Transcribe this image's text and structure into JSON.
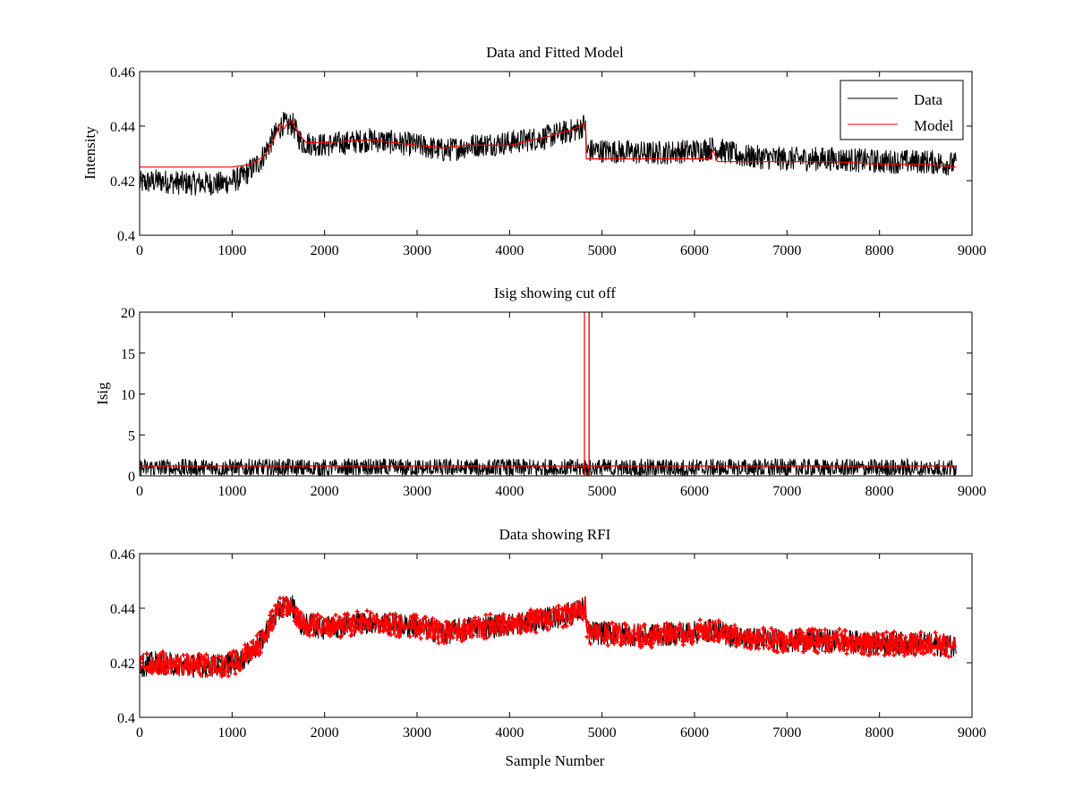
{
  "figure": {
    "xlabel": "Sample Number"
  },
  "colors": {
    "data": "#000000",
    "model": "#ff0000",
    "rfi": "#ff0000",
    "axes": "#000000",
    "background": "#ffffff"
  },
  "chart_data": [
    {
      "type": "line",
      "title": "Data and Fitted Model",
      "xlabel": "",
      "ylabel": "Intensity",
      "xlim": [
        0,
        9000
      ],
      "ylim": [
        0.4,
        0.46
      ],
      "xticks": [
        0,
        1000,
        2000,
        3000,
        4000,
        5000,
        6000,
        7000,
        8000,
        9000
      ],
      "yticks": [
        0.4,
        0.42,
        0.44,
        0.46
      ],
      "ytick_labels": [
        "0.4",
        "0.42",
        "0.44",
        "0.46"
      ],
      "grid": false,
      "legend": {
        "position": "top-right",
        "entries": [
          "Data",
          "Model"
        ]
      },
      "series": [
        {
          "name": "Data",
          "color": "#000000",
          "style": "noisy-line",
          "x_range": [
            0,
            8830
          ],
          "noise_amplitude": 0.0045,
          "trend": {
            "x": [
              0,
              200,
              500,
              900,
              1100,
              1300,
              1450,
              1550,
              1600,
              1650,
              1750,
              2000,
              2500,
              3000,
              3300,
              3600,
              4000,
              4400,
              4750,
              4820,
              4830,
              5000,
              5500,
              6000,
              6200,
              6500,
              7000,
              7500,
              8000,
              8500,
              8830
            ],
            "y": [
              0.419,
              0.42,
              0.419,
              0.419,
              0.421,
              0.427,
              0.436,
              0.441,
              0.44,
              0.441,
              0.434,
              0.433,
              0.435,
              0.433,
              0.431,
              0.433,
              0.434,
              0.436,
              0.439,
              0.441,
              0.431,
              0.431,
              0.43,
              0.431,
              0.432,
              0.429,
              0.428,
              0.428,
              0.427,
              0.427,
              0.426
            ]
          }
        },
        {
          "name": "Model",
          "color": "#ff0000",
          "style": "line",
          "x": [
            0,
            300,
            600,
            1000,
            1200,
            1350,
            1450,
            1520,
            1560,
            1600,
            1650,
            1700,
            1800,
            2000,
            2500,
            3000,
            3300,
            3500,
            4000,
            4400,
            4700,
            4820,
            4830,
            4900,
            5500,
            6000,
            6150,
            6200,
            6250,
            6500,
            7000,
            7500,
            8000,
            8500,
            8830
          ],
          "y": [
            0.425,
            0.425,
            0.425,
            0.425,
            0.426,
            0.429,
            0.435,
            0.441,
            0.439,
            0.441,
            0.442,
            0.438,
            0.434,
            0.434,
            0.435,
            0.433,
            0.432,
            0.433,
            0.433,
            0.436,
            0.439,
            0.441,
            0.428,
            0.428,
            0.428,
            0.428,
            0.428,
            0.431,
            0.427,
            0.427,
            0.427,
            0.427,
            0.426,
            0.426,
            0.425
          ]
        }
      ]
    },
    {
      "type": "line",
      "title": "Isig showing cut off",
      "xlabel": "",
      "ylabel": "Isig",
      "xlim": [
        0,
        9000
      ],
      "ylim": [
        0,
        20
      ],
      "xticks": [
        0,
        1000,
        2000,
        3000,
        4000,
        5000,
        6000,
        7000,
        8000,
        9000
      ],
      "yticks": [
        0,
        5,
        10,
        15,
        20
      ],
      "ytick_labels": [
        "0",
        "5",
        "10",
        "15",
        "20"
      ],
      "grid": false,
      "series": [
        {
          "color": "#000000",
          "style": "noisy-line",
          "x_range": [
            0,
            8830
          ],
          "baseline": 0.9,
          "noise_amplitude": 1.2,
          "spikes": [
            {
              "x": 4810,
              "y": 20
            },
            {
              "x": 4860,
              "y": 20
            }
          ]
        },
        {
          "color": "#ff0000",
          "style": "line",
          "x": [
            0,
            8830
          ],
          "y": [
            1.2,
            1.2
          ]
        },
        {
          "color": "#ff0000",
          "style": "line",
          "x": [
            4810,
            4810
          ],
          "y": [
            0,
            20
          ]
        },
        {
          "color": "#ff0000",
          "style": "line",
          "x": [
            4860,
            4860
          ],
          "y": [
            0,
            20
          ]
        }
      ]
    },
    {
      "type": "line",
      "title": "Data showing RFI",
      "xlabel": "Sample Number",
      "ylabel": "",
      "xlim": [
        0,
        9000
      ],
      "ylim": [
        0.4,
        0.46
      ],
      "xticks": [
        0,
        1000,
        2000,
        3000,
        4000,
        5000,
        6000,
        7000,
        8000,
        9000
      ],
      "yticks": [
        0.4,
        0.42,
        0.44,
        0.46
      ],
      "ytick_labels": [
        "0.4",
        "0.42",
        "0.44",
        "0.46"
      ],
      "grid": false,
      "series": [
        {
          "color": "#000000",
          "style": "noisy-line",
          "x_range": [
            0,
            8830
          ],
          "noise_amplitude": 0.0045,
          "trend": {
            "x": [
              0,
              200,
              500,
              900,
              1100,
              1300,
              1450,
              1550,
              1600,
              1650,
              1750,
              2000,
              2500,
              3000,
              3300,
              3600,
              4000,
              4400,
              4750,
              4820,
              4830,
              5000,
              5500,
              6000,
              6200,
              6500,
              7000,
              7500,
              8000,
              8500,
              8830
            ],
            "y": [
              0.419,
              0.42,
              0.419,
              0.419,
              0.421,
              0.427,
              0.436,
              0.441,
              0.44,
              0.441,
              0.434,
              0.433,
              0.435,
              0.433,
              0.431,
              0.433,
              0.434,
              0.436,
              0.439,
              0.441,
              0.431,
              0.431,
              0.43,
              0.431,
              0.432,
              0.429,
              0.428,
              0.428,
              0.427,
              0.427,
              0.426
            ]
          }
        },
        {
          "color": "#ff0000",
          "style": "markers-plus",
          "x_range": [
            0,
            8830
          ],
          "noise_amplitude": 0.0045,
          "marker_count": 650
        }
      ]
    }
  ]
}
